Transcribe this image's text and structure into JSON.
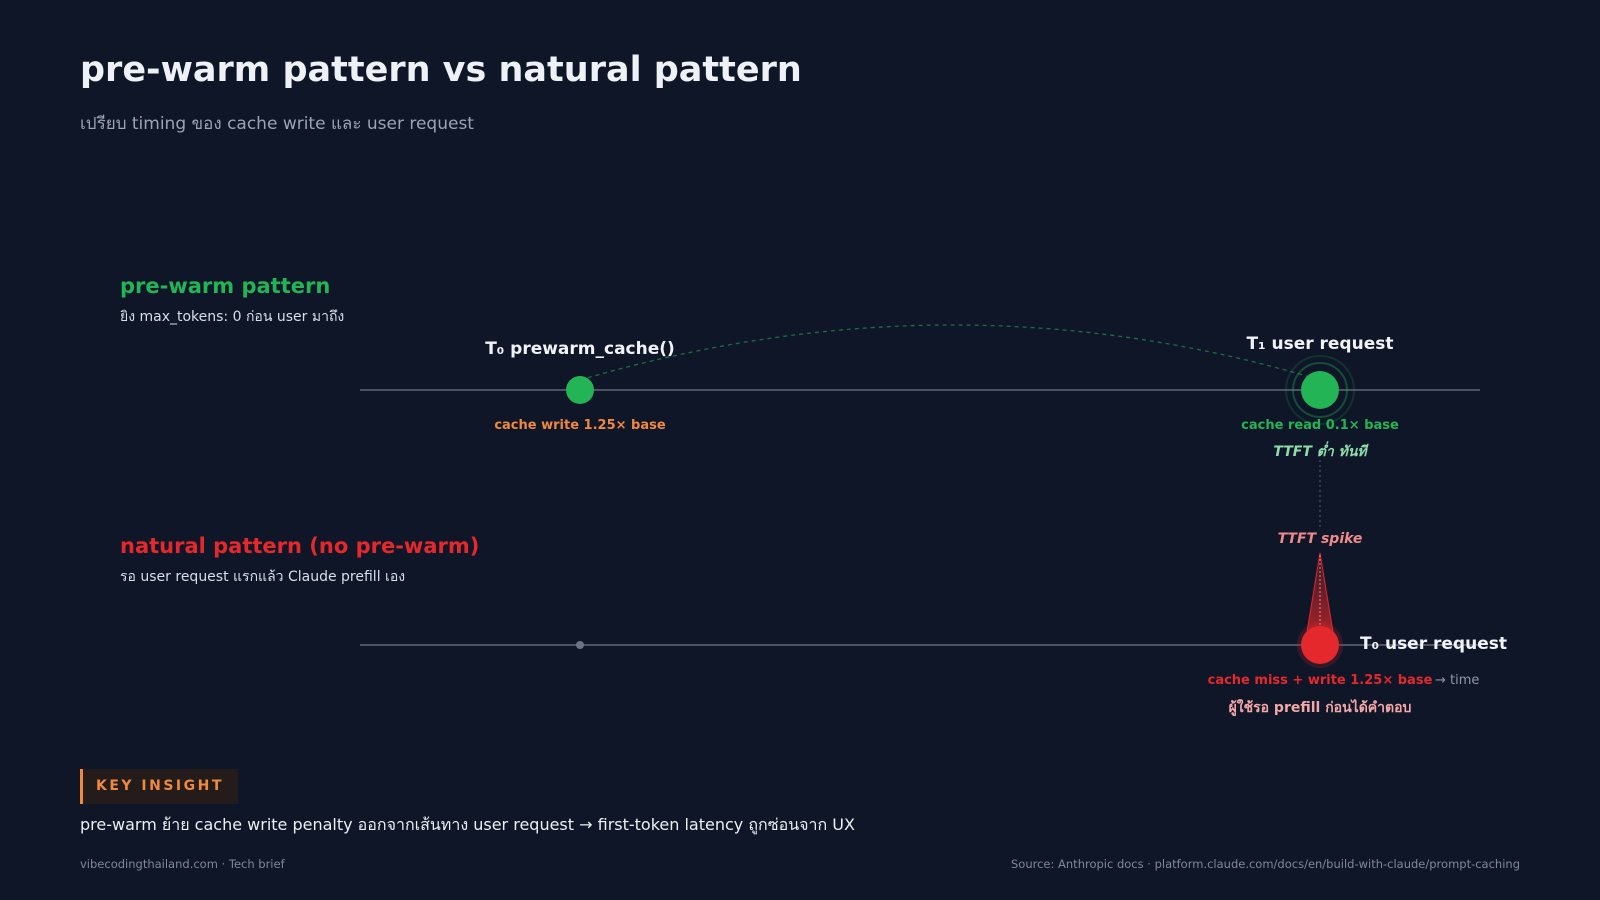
{
  "header": {
    "title": "pre-warm pattern vs natural pattern",
    "subtitle": "เปรียบ timing ของ cache write และ user request"
  },
  "prewarm": {
    "heading": "pre-warm pattern",
    "desc": "ยิง max_tokens: 0 ก่อน user มาถึง",
    "event1_title": "T₀ prewarm_cache()",
    "event1_note": "cache write 1.25× base",
    "event2_title": "T₁ user request",
    "event2_note": "cache read 0.1× base",
    "event2_sub": "TTFT ต่ำ ทันที"
  },
  "natural": {
    "heading": "natural pattern (no pre-warm)",
    "desc": "รอ user request แรกแล้ว Claude prefill เอง",
    "spike_label": "TTFT spike",
    "event_title": "T₀ user request",
    "event_note": "cache miss + write 1.25× base",
    "event_sub": "ผู้ใช้รอ prefill ก่อนได้คำตอบ",
    "axis_note": "→ time"
  },
  "insight": {
    "badge": "KEY INSIGHT",
    "text": "pre-warm ย้าย cache write penalty ออกจากเส้นทาง user request → first-token latency ถูกซ่อนจาก UX"
  },
  "footer": {
    "left": "vibecodingthailand.com · Tech brief",
    "right": "Source: Anthropic docs · platform.claude.com/docs/en/build-with-claude/prompt-caching"
  },
  "colors": {
    "background": "#0f1628",
    "green": "#22b455",
    "red": "#e5282b",
    "orange": "#f0883e",
    "timeline": "#4a5263"
  }
}
